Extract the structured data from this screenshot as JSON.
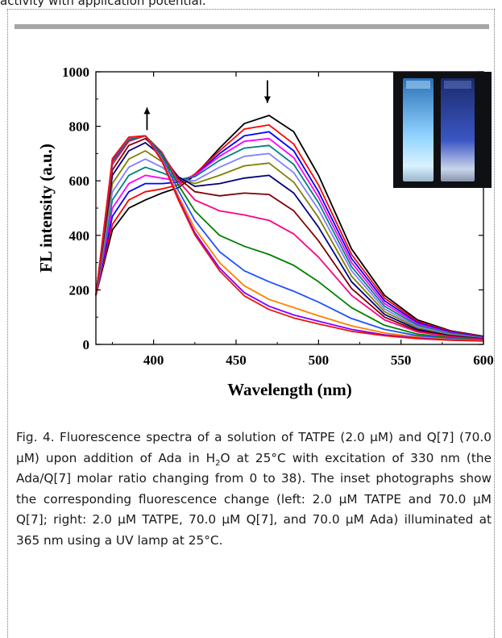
{
  "page": {
    "top_text": "activity with application potential."
  },
  "chart_data": {
    "type": "line",
    "title": "",
    "xlabel": "Wavelength (nm)",
    "ylabel": "FL intensity (a.u.)",
    "xlim": [
      365,
      600
    ],
    "ylim": [
      0,
      1000
    ],
    "xticks": [
      400,
      450,
      500,
      550,
      600
    ],
    "yticks": [
      0,
      200,
      400,
      600,
      800,
      1000
    ],
    "grid": false,
    "legend": "none",
    "x": [
      365,
      375,
      385,
      395,
      405,
      415,
      425,
      440,
      455,
      470,
      485,
      500,
      520,
      540,
      560,
      580,
      600
    ],
    "series": [
      {
        "color": "#000000",
        "values": [
          180,
          420,
          500,
          530,
          555,
          575,
          620,
          720,
          810,
          840,
          780,
          620,
          350,
          180,
          90,
          50,
          30
        ]
      },
      {
        "color": "#ff0000",
        "values": [
          180,
          440,
          530,
          560,
          570,
          585,
          625,
          710,
          790,
          805,
          735,
          585,
          330,
          170,
          85,
          48,
          28
        ]
      },
      {
        "color": "#0000ff",
        "values": [
          180,
          470,
          560,
          590,
          590,
          595,
          620,
          700,
          765,
          780,
          710,
          560,
          315,
          160,
          80,
          45,
          26
        ]
      },
      {
        "color": "#ff00ff",
        "values": [
          180,
          500,
          590,
          620,
          610,
          600,
          620,
          690,
          745,
          755,
          685,
          540,
          300,
          150,
          75,
          42,
          25
        ]
      },
      {
        "color": "#008080",
        "values": [
          180,
          530,
          620,
          650,
          630,
          605,
          615,
          675,
          720,
          730,
          660,
          520,
          285,
          140,
          70,
          40,
          24
        ]
      },
      {
        "color": "#8080ff",
        "values": [
          180,
          560,
          650,
          680,
          650,
          605,
          600,
          650,
          690,
          700,
          630,
          495,
          270,
          130,
          65,
          37,
          22
        ]
      },
      {
        "color": "#808000",
        "values": [
          180,
          590,
          680,
          710,
          670,
          610,
          590,
          620,
          655,
          665,
          595,
          465,
          250,
          120,
          60,
          35,
          21
        ]
      },
      {
        "color": "#000080",
        "values": [
          180,
          620,
          710,
          740,
          690,
          615,
          580,
          590,
          610,
          620,
          555,
          430,
          230,
          110,
          55,
          32,
          20
        ]
      },
      {
        "color": "#800000",
        "values": [
          180,
          640,
          730,
          755,
          700,
          610,
          560,
          545,
          555,
          550,
          490,
          380,
          205,
          100,
          50,
          30,
          19
        ]
      },
      {
        "color": "#ff0080",
        "values": [
          180,
          660,
          745,
          765,
          705,
          600,
          530,
          490,
          475,
          455,
          405,
          320,
          180,
          90,
          46,
          28,
          18
        ]
      },
      {
        "color": "#008000",
        "values": [
          180,
          670,
          750,
          765,
          700,
          585,
          490,
          400,
          360,
          330,
          290,
          230,
          135,
          70,
          38,
          24,
          16
        ]
      },
      {
        "color": "#2050ff",
        "values": [
          180,
          675,
          755,
          765,
          690,
          565,
          455,
          340,
          270,
          230,
          195,
          155,
          95,
          55,
          32,
          21,
          15
        ]
      },
      {
        "color": "#ff8000",
        "values": [
          180,
          680,
          758,
          765,
          680,
          545,
          425,
          300,
          215,
          165,
          135,
          105,
          68,
          42,
          27,
          18,
          14
        ]
      },
      {
        "color": "#8000ff",
        "values": [
          180,
          680,
          760,
          765,
          675,
          535,
          410,
          280,
          190,
          140,
          108,
          85,
          55,
          35,
          23,
          16,
          13
        ]
      },
      {
        "color": "#ee1111",
        "values": [
          180,
          682,
          760,
          765,
          672,
          530,
          402,
          270,
          178,
          128,
          97,
          75,
          48,
          32,
          21,
          15,
          12
        ]
      }
    ],
    "annotations": [
      {
        "text": "↑",
        "x": 396,
        "y": 780
      },
      {
        "text": "↓",
        "x": 469,
        "y": 880
      }
    ],
    "inset": {
      "description_colors": {
        "left_glow": "#7fc8ff",
        "right_glow": "#3b4fb8",
        "background": "#101216"
      }
    }
  },
  "caption": {
    "part1": "Fig. 4. Fluorescence spectra of a solution of TATPE (2.0 μM) and Q[7] (70.0 μM) upon addition of Ada in H",
    "sub": "2",
    "part2": "O at 25°C with excitation of 330 nm (the Ada/Q[7] molar ratio changing from 0 to 38). The inset photographs show the corresponding fluorescence change (left: 2.0 μM TATPE and 70.0 μM Q[7]; right: 2.0 μM TATPE, 70.0 μM Q[7], and 70.0 μM Ada) illuminated at 365 nm using a UV lamp at 25°C."
  }
}
